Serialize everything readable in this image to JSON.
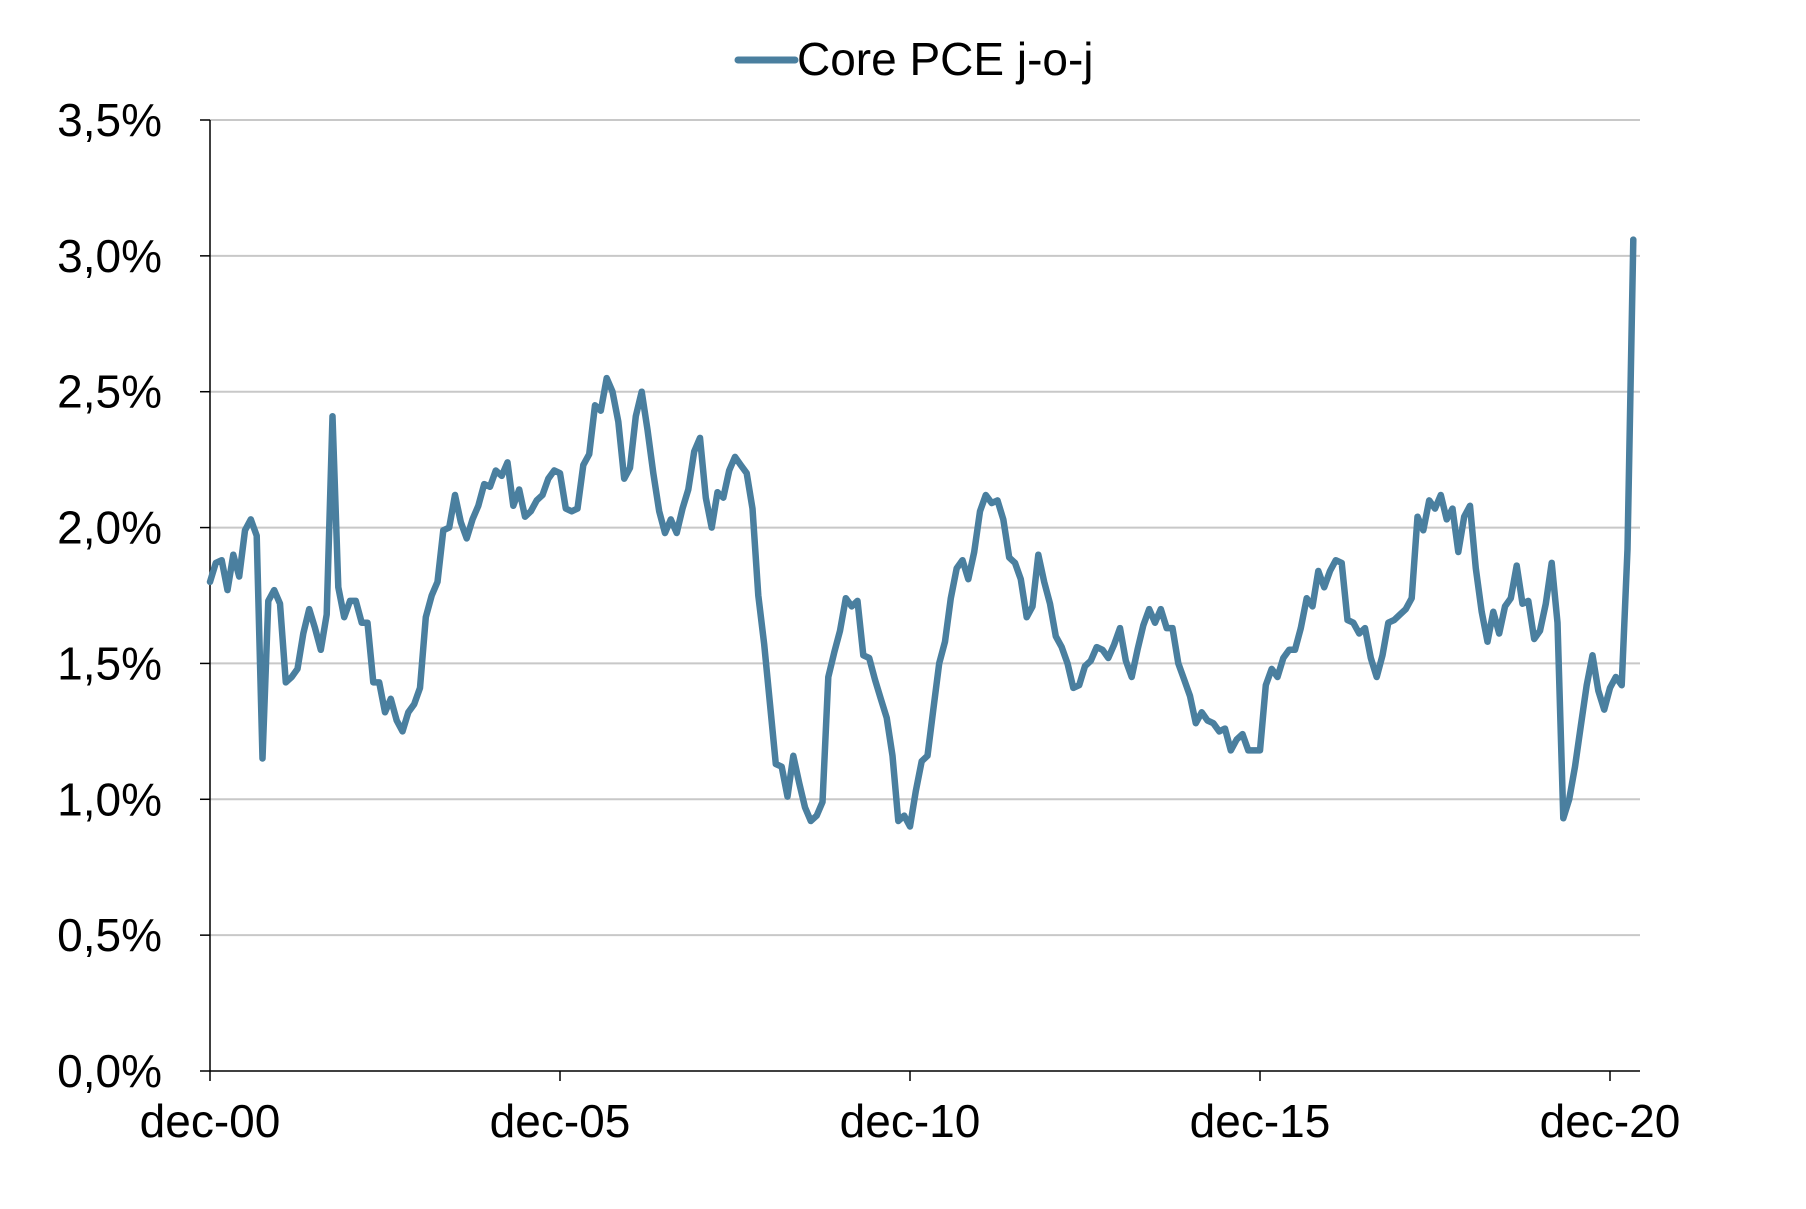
{
  "chart_data": {
    "type": "line",
    "title": "",
    "xlabel": "",
    "ylabel": "",
    "legend": {
      "position": "top-center"
    },
    "grid": {
      "y": true,
      "x": false
    },
    "colors": {
      "series": "#4a7f9f",
      "grid": "#c8c8c8",
      "axis": "#000000"
    },
    "x_start": "2000-12",
    "x_end": "2021-04",
    "xticks": [
      "dec-00",
      "dec-05",
      "dec-10",
      "dec-15",
      "dec-20"
    ],
    "yticks": [
      "0,0%",
      "0,5%",
      "1,0%",
      "1,5%",
      "2,0%",
      "2,5%",
      "3,0%",
      "3,5%"
    ],
    "ylim": [
      0,
      3.5
    ],
    "series": [
      {
        "name": "Core PCE j-o-j",
        "x": [
          "2000-12",
          "2001-01",
          "2001-02",
          "2001-03",
          "2001-04",
          "2001-05",
          "2001-06",
          "2001-07",
          "2001-08",
          "2001-09",
          "2001-10",
          "2001-11",
          "2001-12",
          "2002-01",
          "2002-02",
          "2002-03",
          "2002-04",
          "2002-05",
          "2002-06",
          "2002-07",
          "2002-08",
          "2002-09",
          "2002-10",
          "2002-11",
          "2002-12",
          "2003-01",
          "2003-02",
          "2003-03",
          "2003-04",
          "2003-05",
          "2003-06",
          "2003-07",
          "2003-08",
          "2003-09",
          "2003-10",
          "2003-11",
          "2003-12",
          "2004-01",
          "2004-02",
          "2004-03",
          "2004-04",
          "2004-05",
          "2004-06",
          "2004-07",
          "2004-08",
          "2004-09",
          "2004-10",
          "2004-11",
          "2004-12",
          "2005-01",
          "2005-02",
          "2005-03",
          "2005-04",
          "2005-05",
          "2005-06",
          "2005-07",
          "2005-08",
          "2005-09",
          "2005-10",
          "2005-11",
          "2005-12",
          "2006-01",
          "2006-02",
          "2006-03",
          "2006-04",
          "2006-05",
          "2006-06",
          "2006-07",
          "2006-08",
          "2006-09",
          "2006-10",
          "2006-11",
          "2006-12",
          "2007-01",
          "2007-02",
          "2007-03",
          "2007-04",
          "2007-05",
          "2007-06",
          "2007-07",
          "2007-08",
          "2007-09",
          "2007-10",
          "2007-11",
          "2007-12",
          "2008-01",
          "2008-02",
          "2008-03",
          "2008-04",
          "2008-05",
          "2008-06",
          "2008-07",
          "2008-08",
          "2008-09",
          "2008-10",
          "2008-11",
          "2008-12",
          "2009-01",
          "2009-02",
          "2009-03",
          "2009-04",
          "2009-05",
          "2009-06",
          "2009-07",
          "2009-08",
          "2009-09",
          "2009-10",
          "2009-11",
          "2009-12",
          "2010-01",
          "2010-02",
          "2010-03",
          "2010-04",
          "2010-05",
          "2010-06",
          "2010-07",
          "2010-08",
          "2010-09",
          "2010-10",
          "2010-11",
          "2010-12",
          "2011-01",
          "2011-02",
          "2011-03",
          "2011-04",
          "2011-05",
          "2011-06",
          "2011-07",
          "2011-08",
          "2011-09",
          "2011-10",
          "2011-11",
          "2011-12",
          "2012-01",
          "2012-02",
          "2012-03",
          "2012-04",
          "2012-05",
          "2012-06",
          "2012-07",
          "2012-08",
          "2012-09",
          "2012-10",
          "2012-11",
          "2012-12",
          "2013-01",
          "2013-02",
          "2013-03",
          "2013-04",
          "2013-05",
          "2013-06",
          "2013-07",
          "2013-08",
          "2013-09",
          "2013-10",
          "2013-11",
          "2013-12",
          "2014-01",
          "2014-02",
          "2014-03",
          "2014-04",
          "2014-05",
          "2014-06",
          "2014-07",
          "2014-08",
          "2014-09",
          "2014-10",
          "2014-11",
          "2014-12",
          "2015-01",
          "2015-02",
          "2015-03",
          "2015-04",
          "2015-05",
          "2015-06",
          "2015-07",
          "2015-08",
          "2015-09",
          "2015-10",
          "2015-11",
          "2015-12",
          "2016-01",
          "2016-02",
          "2016-03",
          "2016-04",
          "2016-05",
          "2016-06",
          "2016-07",
          "2016-08",
          "2016-09",
          "2016-10",
          "2016-11",
          "2016-12",
          "2017-01",
          "2017-02",
          "2017-03",
          "2017-04",
          "2017-05",
          "2017-06",
          "2017-07",
          "2017-08",
          "2017-09",
          "2017-10",
          "2017-11",
          "2017-12",
          "2018-01",
          "2018-02",
          "2018-03",
          "2018-04",
          "2018-05",
          "2018-06",
          "2018-07",
          "2018-08",
          "2018-09",
          "2018-10",
          "2018-11",
          "2018-12",
          "2019-01",
          "2019-02",
          "2019-03",
          "2019-04",
          "2019-05",
          "2019-06",
          "2019-07",
          "2019-08",
          "2019-09",
          "2019-10",
          "2019-11",
          "2019-12",
          "2020-01",
          "2020-02",
          "2020-03",
          "2020-04",
          "2020-05",
          "2020-06",
          "2020-07",
          "2020-08",
          "2020-09",
          "2020-10",
          "2020-11",
          "2020-12",
          "2021-01",
          "2021-02",
          "2021-03",
          "2021-04"
        ],
        "values": [
          1.8,
          1.87,
          1.88,
          1.77,
          1.9,
          1.82,
          1.99,
          2.03,
          1.97,
          1.15,
          1.73,
          1.77,
          1.72,
          1.43,
          1.45,
          1.48,
          1.61,
          1.7,
          1.63,
          1.55,
          1.68,
          2.41,
          1.78,
          1.67,
          1.73,
          1.73,
          1.65,
          1.65,
          1.43,
          1.43,
          1.32,
          1.37,
          1.29,
          1.25,
          1.32,
          1.35,
          1.41,
          1.67,
          1.75,
          1.8,
          1.99,
          2.0,
          2.12,
          2.02,
          1.96,
          2.03,
          2.08,
          2.16,
          2.15,
          2.21,
          2.19,
          2.24,
          2.08,
          2.14,
          2.04,
          2.06,
          2.1,
          2.12,
          2.18,
          2.21,
          2.2,
          2.07,
          2.06,
          2.07,
          2.23,
          2.27,
          2.45,
          2.43,
          2.55,
          2.5,
          2.39,
          2.18,
          2.22,
          2.41,
          2.5,
          2.36,
          2.2,
          2.06,
          1.98,
          2.03,
          1.98,
          2.07,
          2.14,
          2.28,
          2.33,
          2.11,
          2.0,
          2.13,
          2.11,
          2.21,
          2.26,
          2.23,
          2.2,
          2.07,
          1.75,
          1.57,
          1.35,
          1.13,
          1.12,
          1.01,
          1.16,
          1.06,
          0.97,
          0.92,
          0.94,
          0.99,
          1.45,
          1.54,
          1.62,
          1.74,
          1.71,
          1.73,
          1.53,
          1.52,
          1.44,
          1.37,
          1.3,
          1.16,
          0.92,
          0.94,
          0.9,
          1.03,
          1.14,
          1.16,
          1.33,
          1.5,
          1.58,
          1.74,
          1.85,
          1.88,
          1.81,
          1.91,
          2.06,
          2.12,
          2.09,
          2.1,
          2.03,
          1.89,
          1.87,
          1.81,
          1.67,
          1.71,
          1.9,
          1.8,
          1.72,
          1.6,
          1.56,
          1.5,
          1.41,
          1.42,
          1.49,
          1.51,
          1.56,
          1.55,
          1.52,
          1.57,
          1.63,
          1.51,
          1.45,
          1.55,
          1.64,
          1.7,
          1.65,
          1.7,
          1.63,
          1.63,
          1.5,
          1.44,
          1.38,
          1.28,
          1.32,
          1.29,
          1.28,
          1.25,
          1.26,
          1.18,
          1.22,
          1.24,
          1.18,
          1.18,
          1.18,
          1.42,
          1.48,
          1.45,
          1.52,
          1.55,
          1.55,
          1.63,
          1.74,
          1.71,
          1.84,
          1.78,
          1.84,
          1.88,
          1.87,
          1.66,
          1.65,
          1.61,
          1.63,
          1.52,
          1.45,
          1.53,
          1.65,
          1.66,
          1.68,
          1.7,
          1.74,
          2.04,
          1.99,
          2.1,
          2.07,
          2.12,
          2.03,
          2.07,
          1.91,
          2.04,
          2.08,
          1.85,
          1.69,
          1.58,
          1.69,
          1.61,
          1.71,
          1.74,
          1.86,
          1.72,
          1.73,
          1.59,
          1.62,
          1.72,
          1.87,
          1.65,
          0.93,
          1.0,
          1.12,
          1.27,
          1.42,
          1.53,
          1.4,
          1.33,
          1.41,
          1.45,
          1.42,
          1.92,
          3.06
        ]
      }
    ]
  }
}
